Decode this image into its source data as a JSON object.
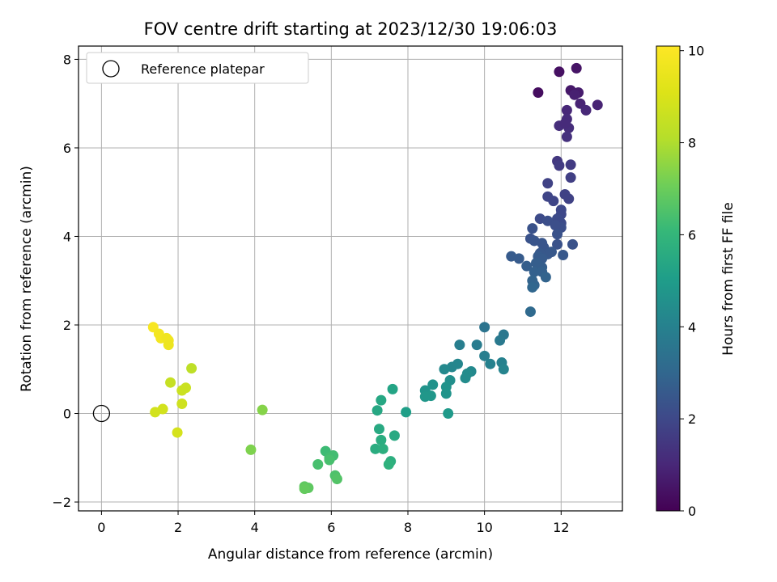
{
  "chart_data": {
    "type": "scatter",
    "title": "FOV centre drift starting at 2023/12/30 19:06:03",
    "xlabel": "Angular distance from reference (arcmin)",
    "ylabel": "Rotation from reference (arcmin)",
    "xlim": [
      -0.6,
      13.6
    ],
    "ylim": [
      -2.2,
      8.3
    ],
    "xticks": [
      0,
      2,
      4,
      6,
      8,
      10,
      12
    ],
    "yticks": [
      -2,
      0,
      2,
      4,
      6,
      8
    ],
    "grid": true,
    "legend": {
      "label": "Reference platepar",
      "placement": "top-left"
    },
    "reference_point": {
      "x": 0,
      "y": 0
    },
    "colorbar": {
      "label": "Hours from first FF file",
      "colormap": "viridis",
      "range": [
        0,
        10.1
      ],
      "ticks": [
        0,
        2,
        4,
        6,
        8,
        10
      ]
    },
    "points": [
      {
        "x": 11.4,
        "y": 7.25,
        "h": 0.3
      },
      {
        "x": 11.95,
        "y": 7.72,
        "h": 0.4
      },
      {
        "x": 12.4,
        "y": 7.8,
        "h": 0.5
      },
      {
        "x": 12.25,
        "y": 7.3,
        "h": 0.6
      },
      {
        "x": 12.45,
        "y": 7.25,
        "h": 0.7
      },
      {
        "x": 12.35,
        "y": 7.2,
        "h": 0.8
      },
      {
        "x": 12.5,
        "y": 7.0,
        "h": 0.9
      },
      {
        "x": 12.65,
        "y": 6.85,
        "h": 1.0
      },
      {
        "x": 12.95,
        "y": 6.97,
        "h": 0.9
      },
      {
        "x": 12.15,
        "y": 6.85,
        "h": 1.0
      },
      {
        "x": 12.15,
        "y": 6.65,
        "h": 1.1
      },
      {
        "x": 11.95,
        "y": 6.5,
        "h": 1.2
      },
      {
        "x": 12.2,
        "y": 6.45,
        "h": 1.2
      },
      {
        "x": 12.1,
        "y": 6.55,
        "h": 1.1
      },
      {
        "x": 12.15,
        "y": 6.25,
        "h": 1.3
      },
      {
        "x": 11.9,
        "y": 5.7,
        "h": 1.5
      },
      {
        "x": 11.95,
        "y": 5.6,
        "h": 1.6
      },
      {
        "x": 12.25,
        "y": 5.62,
        "h": 1.6
      },
      {
        "x": 12.25,
        "y": 5.33,
        "h": 1.7
      },
      {
        "x": 11.65,
        "y": 5.2,
        "h": 1.8
      },
      {
        "x": 11.65,
        "y": 4.9,
        "h": 1.9
      },
      {
        "x": 11.8,
        "y": 4.8,
        "h": 1.9
      },
      {
        "x": 12.1,
        "y": 4.95,
        "h": 1.8
      },
      {
        "x": 12.2,
        "y": 4.85,
        "h": 1.8
      },
      {
        "x": 12.0,
        "y": 4.6,
        "h": 2.0
      },
      {
        "x": 12.0,
        "y": 4.5,
        "h": 2.0
      },
      {
        "x": 11.9,
        "y": 4.4,
        "h": 2.1
      },
      {
        "x": 11.45,
        "y": 4.4,
        "h": 2.1
      },
      {
        "x": 11.65,
        "y": 4.35,
        "h": 2.2
      },
      {
        "x": 12.0,
        "y": 4.3,
        "h": 2.1
      },
      {
        "x": 12.0,
        "y": 4.2,
        "h": 2.2
      },
      {
        "x": 11.85,
        "y": 4.25,
        "h": 2.2
      },
      {
        "x": 11.25,
        "y": 4.18,
        "h": 2.3
      },
      {
        "x": 11.9,
        "y": 4.05,
        "h": 2.3
      },
      {
        "x": 11.2,
        "y": 3.95,
        "h": 2.3
      },
      {
        "x": 11.3,
        "y": 3.9,
        "h": 2.4
      },
      {
        "x": 11.5,
        "y": 3.85,
        "h": 2.4
      },
      {
        "x": 11.9,
        "y": 3.82,
        "h": 2.3
      },
      {
        "x": 12.3,
        "y": 3.82,
        "h": 2.3
      },
      {
        "x": 11.55,
        "y": 3.75,
        "h": 2.4
      },
      {
        "x": 11.75,
        "y": 3.65,
        "h": 2.5
      },
      {
        "x": 11.65,
        "y": 3.6,
        "h": 2.5
      },
      {
        "x": 11.45,
        "y": 3.62,
        "h": 2.5
      },
      {
        "x": 11.4,
        "y": 3.55,
        "h": 2.6
      },
      {
        "x": 11.5,
        "y": 3.5,
        "h": 2.6
      },
      {
        "x": 12.05,
        "y": 3.58,
        "h": 2.5
      },
      {
        "x": 10.7,
        "y": 3.55,
        "h": 2.6
      },
      {
        "x": 10.9,
        "y": 3.5,
        "h": 2.6
      },
      {
        "x": 11.35,
        "y": 3.4,
        "h": 2.7
      },
      {
        "x": 11.1,
        "y": 3.33,
        "h": 2.7
      },
      {
        "x": 11.5,
        "y": 3.3,
        "h": 2.7
      },
      {
        "x": 11.3,
        "y": 3.2,
        "h": 2.8
      },
      {
        "x": 11.5,
        "y": 3.2,
        "h": 2.8
      },
      {
        "x": 11.6,
        "y": 3.08,
        "h": 2.9
      },
      {
        "x": 11.25,
        "y": 3.0,
        "h": 2.9
      },
      {
        "x": 11.3,
        "y": 2.9,
        "h": 2.9
      },
      {
        "x": 11.25,
        "y": 2.85,
        "h": 3.0
      },
      {
        "x": 11.2,
        "y": 2.3,
        "h": 3.1
      },
      {
        "x": 10.0,
        "y": 1.95,
        "h": 3.5
      },
      {
        "x": 10.5,
        "y": 1.78,
        "h": 3.6
      },
      {
        "x": 10.4,
        "y": 1.65,
        "h": 3.7
      },
      {
        "x": 9.8,
        "y": 1.55,
        "h": 3.8
      },
      {
        "x": 9.35,
        "y": 1.55,
        "h": 3.9
      },
      {
        "x": 10.0,
        "y": 1.3,
        "h": 3.9
      },
      {
        "x": 10.15,
        "y": 1.12,
        "h": 4.0
      },
      {
        "x": 10.45,
        "y": 1.15,
        "h": 4.0
      },
      {
        "x": 10.5,
        "y": 1.0,
        "h": 4.1
      },
      {
        "x": 9.3,
        "y": 1.12,
        "h": 4.2
      },
      {
        "x": 9.15,
        "y": 1.05,
        "h": 4.2
      },
      {
        "x": 8.95,
        "y": 1.0,
        "h": 4.3
      },
      {
        "x": 9.65,
        "y": 0.95,
        "h": 4.3
      },
      {
        "x": 9.55,
        "y": 0.9,
        "h": 4.4
      },
      {
        "x": 9.5,
        "y": 0.8,
        "h": 4.4
      },
      {
        "x": 9.1,
        "y": 0.75,
        "h": 4.5
      },
      {
        "x": 8.65,
        "y": 0.65,
        "h": 4.6
      },
      {
        "x": 9.0,
        "y": 0.6,
        "h": 4.6
      },
      {
        "x": 8.45,
        "y": 0.52,
        "h": 4.7
      },
      {
        "x": 9.0,
        "y": 0.45,
        "h": 4.7
      },
      {
        "x": 8.6,
        "y": 0.4,
        "h": 4.8
      },
      {
        "x": 8.45,
        "y": 0.38,
        "h": 4.8
      },
      {
        "x": 9.05,
        "y": 0.0,
        "h": 4.9
      },
      {
        "x": 7.95,
        "y": 0.03,
        "h": 5.1
      },
      {
        "x": 7.6,
        "y": 0.55,
        "h": 5.3
      },
      {
        "x": 7.3,
        "y": 0.3,
        "h": 5.4
      },
      {
        "x": 7.2,
        "y": 0.07,
        "h": 5.4
      },
      {
        "x": 7.25,
        "y": -0.35,
        "h": 5.5
      },
      {
        "x": 7.65,
        "y": -0.5,
        "h": 5.5
      },
      {
        "x": 7.3,
        "y": -0.6,
        "h": 5.6
      },
      {
        "x": 7.15,
        "y": -0.8,
        "h": 5.6
      },
      {
        "x": 7.35,
        "y": -0.8,
        "h": 5.7
      },
      {
        "x": 7.55,
        "y": -1.08,
        "h": 5.7
      },
      {
        "x": 7.5,
        "y": -1.15,
        "h": 5.8
      },
      {
        "x": 5.85,
        "y": -0.85,
        "h": 6.2
      },
      {
        "x": 6.05,
        "y": -0.95,
        "h": 6.3
      },
      {
        "x": 5.95,
        "y": -1.0,
        "h": 6.3
      },
      {
        "x": 5.95,
        "y": -1.05,
        "h": 6.4
      },
      {
        "x": 5.65,
        "y": -1.15,
        "h": 6.4
      },
      {
        "x": 6.1,
        "y": -1.4,
        "h": 6.5
      },
      {
        "x": 6.15,
        "y": -1.48,
        "h": 6.6
      },
      {
        "x": 5.3,
        "y": -1.65,
        "h": 6.8
      },
      {
        "x": 5.4,
        "y": -1.68,
        "h": 6.8
      },
      {
        "x": 5.3,
        "y": -1.7,
        "h": 6.9
      },
      {
        "x": 3.9,
        "y": -0.82,
        "h": 7.3
      },
      {
        "x": 4.2,
        "y": 0.08,
        "h": 7.4
      },
      {
        "x": 2.35,
        "y": 1.02,
        "h": 8.3
      },
      {
        "x": 1.8,
        "y": 0.7,
        "h": 8.5
      },
      {
        "x": 2.2,
        "y": 0.58,
        "h": 8.6
      },
      {
        "x": 2.1,
        "y": 0.52,
        "h": 8.6
      },
      {
        "x": 2.1,
        "y": 0.22,
        "h": 8.7
      },
      {
        "x": 1.6,
        "y": 0.1,
        "h": 8.8
      },
      {
        "x": 1.4,
        "y": 0.03,
        "h": 8.8
      },
      {
        "x": 1.98,
        "y": -0.43,
        "h": 8.9
      },
      {
        "x": 1.35,
        "y": 1.95,
        "h": 9.9
      },
      {
        "x": 1.5,
        "y": 1.8,
        "h": 9.8
      },
      {
        "x": 1.55,
        "y": 1.7,
        "h": 9.8
      },
      {
        "x": 1.7,
        "y": 1.7,
        "h": 9.7
      },
      {
        "x": 1.75,
        "y": 1.65,
        "h": 9.7
      },
      {
        "x": 1.75,
        "y": 1.55,
        "h": 9.6
      }
    ]
  }
}
